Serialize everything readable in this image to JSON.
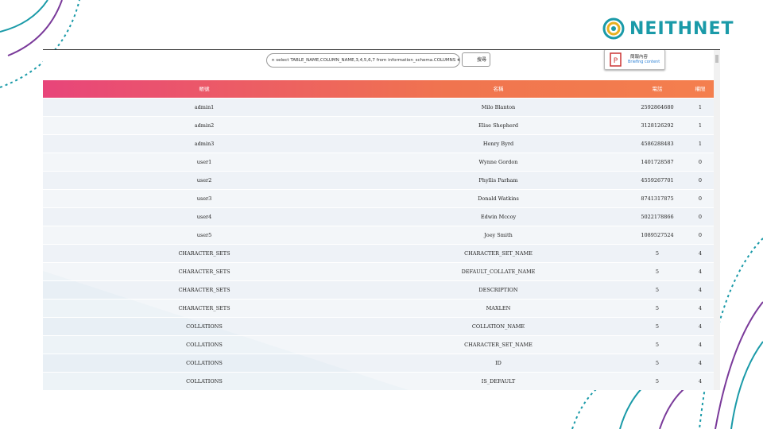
{
  "logo": "NEITHNET",
  "toolbar": {
    "search": "n select TABLE_NAME,COLUMN_NAME,3,4,5,6,7 from information_schema.COLUMNS #",
    "search_button": "搜尋",
    "briefing": {
      "zh": "簡報內容",
      "en": "Briefing content"
    }
  },
  "table": {
    "headers": [
      "帳號",
      "名稱",
      "電話",
      "權限"
    ],
    "rows": [
      [
        "admin1",
        "Milo Blanton",
        "2592864680",
        "1"
      ],
      [
        "admin2",
        "Elise Shepherd",
        "3128126292",
        "1"
      ],
      [
        "admin3",
        "Henry Byrd",
        "4586288483",
        "1"
      ],
      [
        "user1",
        "Wynne Gordon",
        "1401728587",
        "0"
      ],
      [
        "user2",
        "Phyllis Parham",
        "4559267701",
        "0"
      ],
      [
        "user3",
        "Donald Watkins",
        "8741317875",
        "0"
      ],
      [
        "user4",
        "Edwin Mccoy",
        "5022178866",
        "0"
      ],
      [
        "user5",
        "Joey Smith",
        "1089527524",
        "0"
      ],
      [
        "CHARACTER_SETS",
        "CHARACTER_SET_NAME",
        "5",
        "4"
      ],
      [
        "CHARACTER_SETS",
        "DEFAULT_COLLATE_NAME",
        "5",
        "4"
      ],
      [
        "CHARACTER_SETS",
        "DESCRIPTION",
        "5",
        "4"
      ],
      [
        "CHARACTER_SETS",
        "MAXLEN",
        "5",
        "4"
      ],
      [
        "COLLATIONS",
        "COLLATION_NAME",
        "5",
        "4"
      ],
      [
        "COLLATIONS",
        "CHARACTER_SET_NAME",
        "5",
        "4"
      ],
      [
        "COLLATIONS",
        "ID",
        "5",
        "4"
      ],
      [
        "COLLATIONS",
        "IS_DEFAULT",
        "5",
        "4"
      ]
    ]
  }
}
